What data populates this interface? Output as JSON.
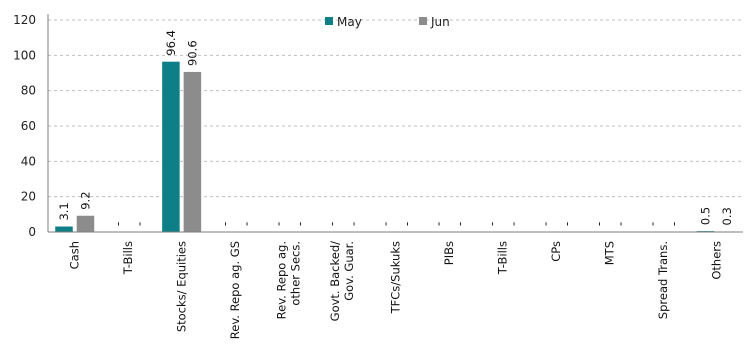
{
  "chart_data": {
    "type": "bar",
    "categories": [
      "Cash",
      "T-Bills",
      "Stocks/ Equities",
      "Rev. Repo ag. GS",
      "Rev. Repo ag. other Secs.",
      "Govt. Backed/ Gov. Guar.",
      "TFCs/Sukuks",
      "PIBs",
      "T-Bills",
      "CPs",
      "MTS",
      "Spread Trans.",
      "Others"
    ],
    "series": [
      {
        "name": "May",
        "color": "#0e7f86",
        "values": [
          3.1,
          0,
          96.4,
          0,
          0,
          0,
          0,
          0,
          0,
          0,
          0,
          0,
          0.5
        ],
        "labels": [
          "3.1",
          "-",
          "96.4",
          "-",
          "-",
          "-",
          "-",
          "-",
          "-",
          "-",
          "-",
          "-",
          "0.5"
        ]
      },
      {
        "name": "Jun",
        "color": "#8c8c8c",
        "values": [
          9.2,
          0,
          90.6,
          0,
          0,
          0,
          0,
          0,
          0,
          0,
          0,
          0,
          0.3
        ],
        "labels": [
          "9.2",
          "-",
          "90.6",
          "-",
          "-",
          "-",
          "-",
          "-",
          "-",
          "-",
          "-",
          "-",
          "0.3"
        ]
      }
    ],
    "ylim": [
      0,
      120
    ],
    "yticks": [
      "0",
      "20",
      "40",
      "60",
      "80",
      "100",
      "120"
    ],
    "grid": "horizontal dashed",
    "legend": "top-center"
  }
}
